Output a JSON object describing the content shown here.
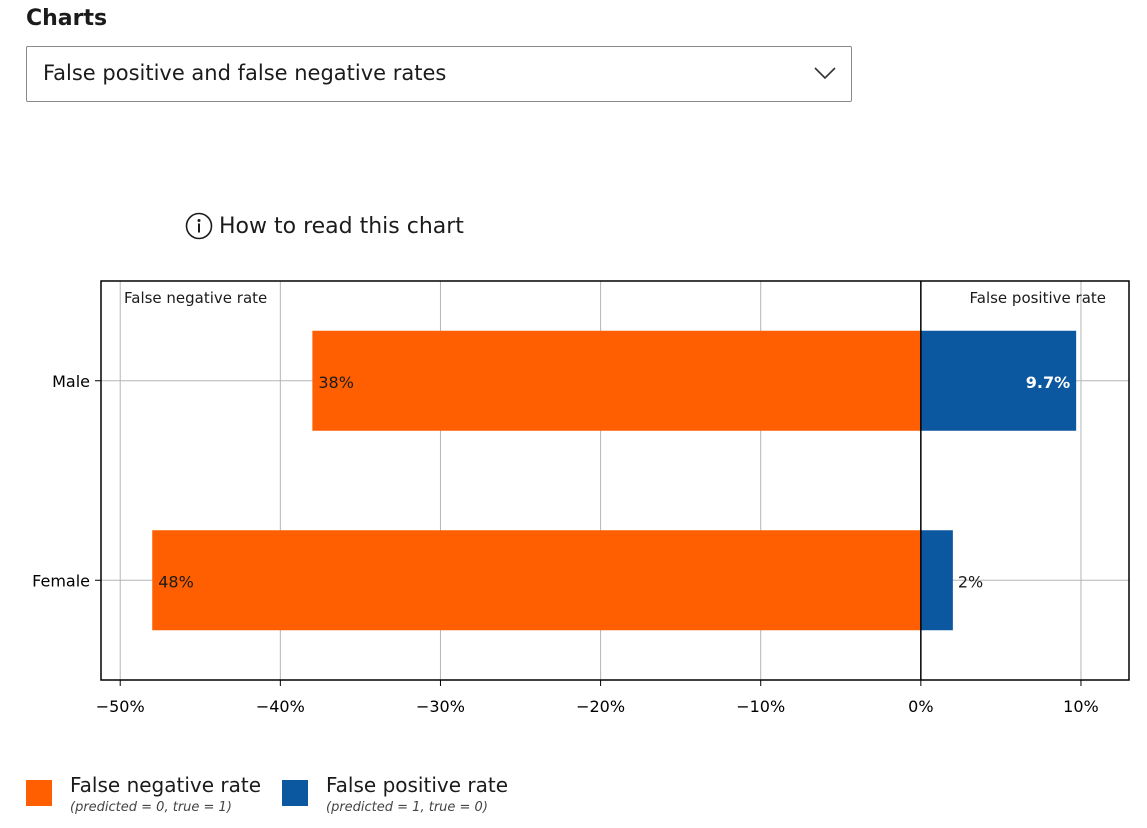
{
  "section_label": "Charts",
  "dropdown": {
    "value": "False positive and false negative rates",
    "icon": "chevron-down-icon"
  },
  "how_to_read": {
    "label": "How to read this chart",
    "icon": "info-icon"
  },
  "colors": {
    "fnr": "#ff5f00",
    "fpr": "#0b57a0"
  },
  "legend": [
    {
      "label": "False negative rate",
      "sub": "(predicted = 0, true = 1)"
    },
    {
      "label": "False positive rate",
      "sub": "(predicted = 1, true = 0)"
    }
  ],
  "chart_data": {
    "type": "bar",
    "orientation": "horizontal",
    "categories": [
      "Male",
      "Female"
    ],
    "series": [
      {
        "name": "False negative rate",
        "values": [
          -38,
          -48
        ],
        "labels": [
          "38%",
          "48%"
        ]
      },
      {
        "name": "False positive rate",
        "values": [
          9.7,
          2
        ],
        "labels": [
          "9.7%",
          "2%"
        ]
      }
    ],
    "region_labels": {
      "left": "False negative rate",
      "right": "False positive rate"
    },
    "xlim": [
      -51.2,
      13
    ],
    "xticks": [
      -50,
      -40,
      -30,
      -20,
      -10,
      0,
      10
    ],
    "xtick_labels": [
      "−50%",
      "−40%",
      "−30%",
      "−20%",
      "−10%",
      "0%",
      "10%"
    ],
    "grid": true
  }
}
